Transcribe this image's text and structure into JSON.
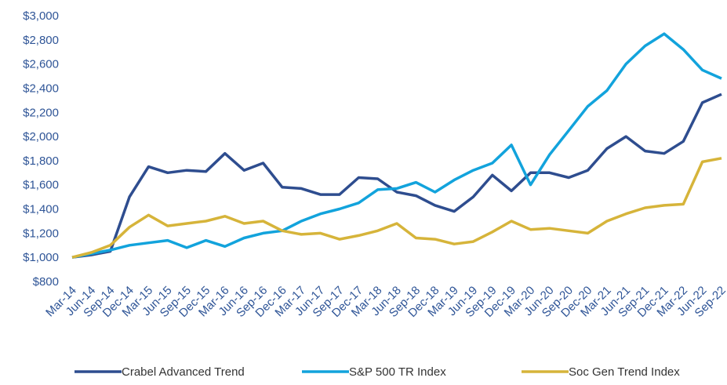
{
  "chart_data": {
    "type": "line",
    "categories": [
      "Mar-14",
      "Jun-14",
      "Sep-14",
      "Dec-14",
      "Mar-15",
      "Jun-15",
      "Sep-15",
      "Dec-15",
      "Mar-16",
      "Jun-16",
      "Sep-16",
      "Dec-16",
      "Mar-17",
      "Jun-17",
      "Sep-17",
      "Dec-17",
      "Mar-18",
      "Jun-18",
      "Sep-18",
      "Dec-18",
      "Mar-19",
      "Jun-19",
      "Sep-19",
      "Dec-19",
      "Mar-20",
      "Jun-20",
      "Sep-20",
      "Dec-20",
      "Mar-21",
      "Jun-21",
      "Sep-21",
      "Dec-21",
      "Mar-22",
      "Jun-22",
      "Sep-22"
    ],
    "series": [
      {
        "name": "Crabel Advanced Trend",
        "color": "#2e4d8f",
        "values": [
          1000,
          1020,
          1050,
          1500,
          1750,
          1700,
          1720,
          1710,
          1860,
          1720,
          1780,
          1580,
          1570,
          1520,
          1520,
          1660,
          1650,
          1540,
          1510,
          1430,
          1380,
          1500,
          1680,
          1550,
          1700,
          1700,
          1660,
          1720,
          1900,
          2000,
          1880,
          1860,
          1960,
          2280,
          2350
        ]
      },
      {
        "name": "S&P 500 TR Index",
        "color": "#12a3dc",
        "values": [
          1000,
          1030,
          1060,
          1100,
          1120,
          1140,
          1080,
          1140,
          1090,
          1160,
          1200,
          1220,
          1300,
          1360,
          1400,
          1450,
          1560,
          1570,
          1620,
          1540,
          1640,
          1720,
          1780,
          1930,
          1600,
          1850,
          2050,
          2250,
          2380,
          2600,
          2750,
          2850,
          2720,
          2550,
          2480
        ]
      },
      {
        "name": "Soc Gen Trend Index",
        "color": "#d6b43a",
        "values": [
          1000,
          1040,
          1100,
          1250,
          1350,
          1260,
          1280,
          1300,
          1340,
          1280,
          1300,
          1220,
          1190,
          1200,
          1150,
          1180,
          1220,
          1280,
          1160,
          1150,
          1110,
          1130,
          1210,
          1300,
          1230,
          1240,
          1220,
          1200,
          1300,
          1360,
          1410,
          1430,
          1440,
          1790,
          1820
        ]
      }
    ],
    "ylim": [
      800,
      3000
    ],
    "yticks": [
      {
        "value": 800,
        "label": "$800"
      },
      {
        "value": 1000,
        "label": "$1,000"
      },
      {
        "value": 1200,
        "label": "$1,200"
      },
      {
        "value": 1400,
        "label": "$1,400"
      },
      {
        "value": 1600,
        "label": "$1,600"
      },
      {
        "value": 1800,
        "label": "$1,800"
      },
      {
        "value": 2000,
        "label": "$2,000"
      },
      {
        "value": 2200,
        "label": "$2,200"
      },
      {
        "value": 2400,
        "label": "$2,400"
      },
      {
        "value": 2600,
        "label": "$2,600"
      },
      {
        "value": 2800,
        "label": "$2,800"
      },
      {
        "value": 3000,
        "label": "$3,000"
      }
    ],
    "grid": false,
    "legend": "bottom"
  }
}
